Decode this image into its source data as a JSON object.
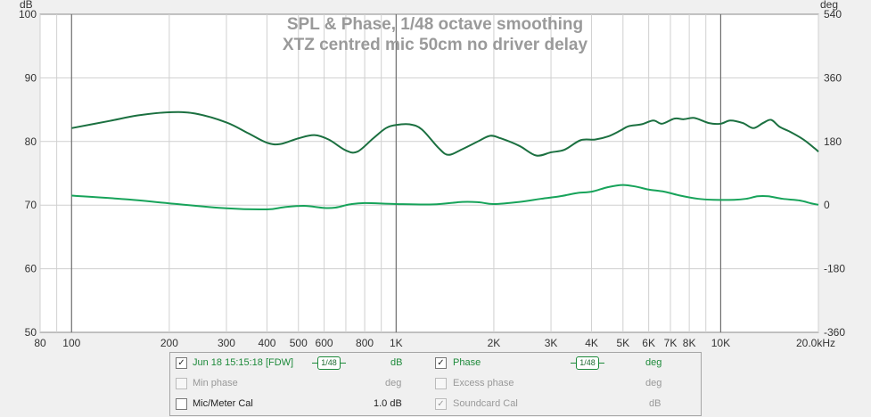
{
  "chart_data": {
    "type": "line",
    "title": "SPL & Phase, 1/48 octave smoothing",
    "subtitle": "XTZ centred mic 50cm no driver delay",
    "left_axis": {
      "label": "dB",
      "ylim": [
        50,
        100
      ],
      "ticks": [
        "50",
        "60",
        "70",
        "80",
        "90",
        "100"
      ]
    },
    "right_axis": {
      "label": "deg",
      "ylim": [
        -360,
        540
      ],
      "ticks": [
        "-360",
        "-180",
        "0",
        "180",
        "360",
        "540"
      ]
    },
    "x_axis": {
      "scale": "log",
      "xlim": [
        80,
        20000
      ],
      "unit": "Hz",
      "ticks": [
        {
          "v": 80,
          "t": "80"
        },
        {
          "v": 100,
          "t": "100"
        },
        {
          "v": 200,
          "t": "200"
        },
        {
          "v": 300,
          "t": "300"
        },
        {
          "v": 400,
          "t": "400"
        },
        {
          "v": 500,
          "t": "500"
        },
        {
          "v": 600,
          "t": "600"
        },
        {
          "v": 800,
          "t": "800"
        },
        {
          "v": 1000,
          "t": "1K"
        },
        {
          "v": 2000,
          "t": "2K"
        },
        {
          "v": 3000,
          "t": "3K"
        },
        {
          "v": 4000,
          "t": "4K"
        },
        {
          "v": 5000,
          "t": "5K"
        },
        {
          "v": 6000,
          "t": "6K"
        },
        {
          "v": 7000,
          "t": "7K"
        },
        {
          "v": 8000,
          "t": "8K"
        },
        {
          "v": 10000,
          "t": "10K"
        },
        {
          "v": 20000,
          "t": "20.0kHz"
        }
      ]
    },
    "grid": true,
    "series": [
      {
        "axis": "left",
        "color": "#1b7040",
        "points": [
          [
            100,
            82.1
          ],
          [
            130,
            83.2
          ],
          [
            160,
            84.1
          ],
          [
            200,
            84.6
          ],
          [
            240,
            84.4
          ],
          [
            300,
            83.0
          ],
          [
            350,
            81.3
          ],
          [
            400,
            79.8
          ],
          [
            440,
            79.6
          ],
          [
            500,
            80.5
          ],
          [
            560,
            81.0
          ],
          [
            620,
            80.3
          ],
          [
            700,
            78.6
          ],
          [
            760,
            78.4
          ],
          [
            850,
            80.5
          ],
          [
            930,
            82.1
          ],
          [
            1000,
            82.6
          ],
          [
            1100,
            82.7
          ],
          [
            1200,
            81.9
          ],
          [
            1350,
            79.0
          ],
          [
            1450,
            77.9
          ],
          [
            1600,
            78.8
          ],
          [
            1800,
            80.1
          ],
          [
            1950,
            80.9
          ],
          [
            2100,
            80.5
          ],
          [
            2400,
            79.3
          ],
          [
            2700,
            77.8
          ],
          [
            3000,
            78.3
          ],
          [
            3300,
            78.7
          ],
          [
            3700,
            80.2
          ],
          [
            4100,
            80.3
          ],
          [
            4500,
            80.8
          ],
          [
            4900,
            81.7
          ],
          [
            5200,
            82.4
          ],
          [
            5700,
            82.7
          ],
          [
            6200,
            83.3
          ],
          [
            6600,
            82.8
          ],
          [
            7200,
            83.6
          ],
          [
            7700,
            83.5
          ],
          [
            8300,
            83.7
          ],
          [
            9200,
            82.9
          ],
          [
            10000,
            82.8
          ],
          [
            10700,
            83.3
          ],
          [
            11700,
            82.9
          ],
          [
            12600,
            82.1
          ],
          [
            13500,
            82.9
          ],
          [
            14300,
            83.4
          ],
          [
            15200,
            82.3
          ],
          [
            16400,
            81.5
          ],
          [
            18000,
            80.3
          ],
          [
            19500,
            78.9
          ],
          [
            20000,
            78.4
          ]
        ]
      },
      {
        "axis": "right",
        "color": "#17a35a",
        "points": [
          [
            100,
            27
          ],
          [
            150,
            16
          ],
          [
            200,
            5
          ],
          [
            300,
            -9
          ],
          [
            400,
            -12
          ],
          [
            450,
            -6
          ],
          [
            520,
            -2
          ],
          [
            600,
            -8
          ],
          [
            650,
            -7
          ],
          [
            720,
            2
          ],
          [
            800,
            6
          ],
          [
            1000,
            3
          ],
          [
            1300,
            2
          ],
          [
            1600,
            9
          ],
          [
            1800,
            8
          ],
          [
            2000,
            3
          ],
          [
            2400,
            9
          ],
          [
            2800,
            18
          ],
          [
            3200,
            25
          ],
          [
            3600,
            34
          ],
          [
            4000,
            38
          ],
          [
            4500,
            51
          ],
          [
            5000,
            57
          ],
          [
            5500,
            52
          ],
          [
            6000,
            44
          ],
          [
            6700,
            38
          ],
          [
            7500,
            27
          ],
          [
            8500,
            18
          ],
          [
            9500,
            15
          ],
          [
            11000,
            15
          ],
          [
            12000,
            18
          ],
          [
            13000,
            25
          ],
          [
            14000,
            25
          ],
          [
            15500,
            18
          ],
          [
            17500,
            13
          ],
          [
            19000,
            5
          ],
          [
            20000,
            1
          ]
        ]
      }
    ]
  },
  "legend": {
    "row1": {
      "meas_label": "Jun 18 15:15:18 [FDW]",
      "smooth1": "1/48",
      "unit1": "dB",
      "phase_label": "Phase",
      "smooth2": "1/48",
      "unit2": "deg"
    },
    "row2": {
      "minphase_label": "Min phase",
      "unit1": "deg",
      "excess_label": "Excess phase",
      "unit2": "deg"
    },
    "row3": {
      "miccal_label": "Mic/Meter Cal",
      "miccal_value": "1.0 dB",
      "sndcal_label": "Soundcard Cal",
      "unit2": "dB"
    },
    "check_mark": "✓"
  }
}
